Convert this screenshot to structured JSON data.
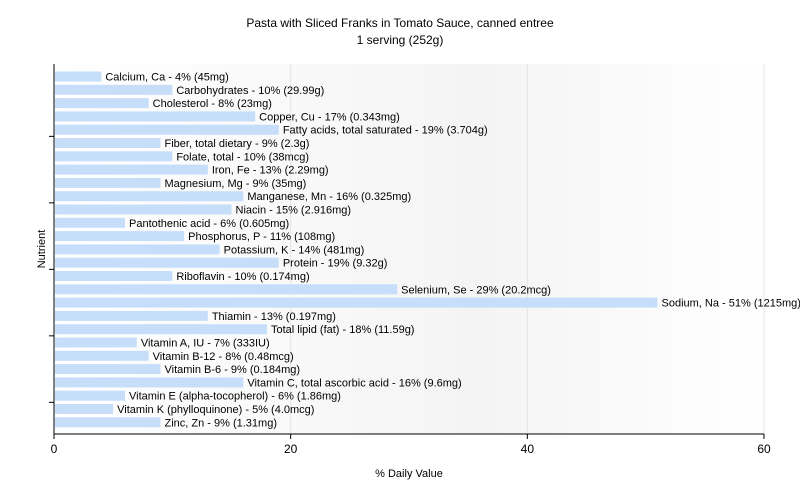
{
  "chart_data": {
    "type": "bar",
    "orientation": "horizontal",
    "title": "Pasta with Sliced Franks in Tomato Sauce, canned entree",
    "subtitle": "1 serving (252g)",
    "xlabel": "% Daily Value",
    "ylabel": "Nutrient",
    "xlim": [
      0,
      60
    ],
    "xticks": [
      "0",
      "20",
      "40",
      "60"
    ],
    "bar_color": "#c6defa",
    "categories": [
      "Calcium, Ca - 4% (45mg)",
      "Carbohydrates - 10% (29.99g)",
      "Cholesterol - 8% (23mg)",
      "Copper, Cu - 17% (0.343mg)",
      "Fatty acids, total saturated - 19% (3.704g)",
      "Fiber, total dietary - 9% (2.3g)",
      "Folate, total - 10% (38mcg)",
      "Iron, Fe - 13% (2.29mg)",
      "Magnesium, Mg - 9% (35mg)",
      "Manganese, Mn - 16% (0.325mg)",
      "Niacin - 15% (2.916mg)",
      "Pantothenic acid - 6% (0.605mg)",
      "Phosphorus, P - 11% (108mg)",
      "Potassium, K - 14% (481mg)",
      "Protein - 19% (9.32g)",
      "Riboflavin - 10% (0.174mg)",
      "Selenium, Se - 29% (20.2mcg)",
      "Sodium, Na - 51% (1215mg)",
      "Thiamin - 13% (0.197mg)",
      "Total lipid (fat) - 18% (11.59g)",
      "Vitamin A, IU - 7% (333IU)",
      "Vitamin B-12 - 8% (0.48mcg)",
      "Vitamin B-6 - 9% (0.184mg)",
      "Vitamin C, total ascorbic acid - 16% (9.6mg)",
      "Vitamin E (alpha-tocopherol) - 6% (1.86mg)",
      "Vitamin K (phylloquinone) - 5% (4.0mcg)",
      "Zinc, Zn - 9% (1.31mg)"
    ],
    "values": [
      4,
      10,
      8,
      17,
      19,
      9,
      10,
      13,
      9,
      16,
      15,
      6,
      11,
      14,
      19,
      10,
      29,
      51,
      13,
      18,
      7,
      8,
      9,
      16,
      6,
      5,
      9
    ]
  }
}
